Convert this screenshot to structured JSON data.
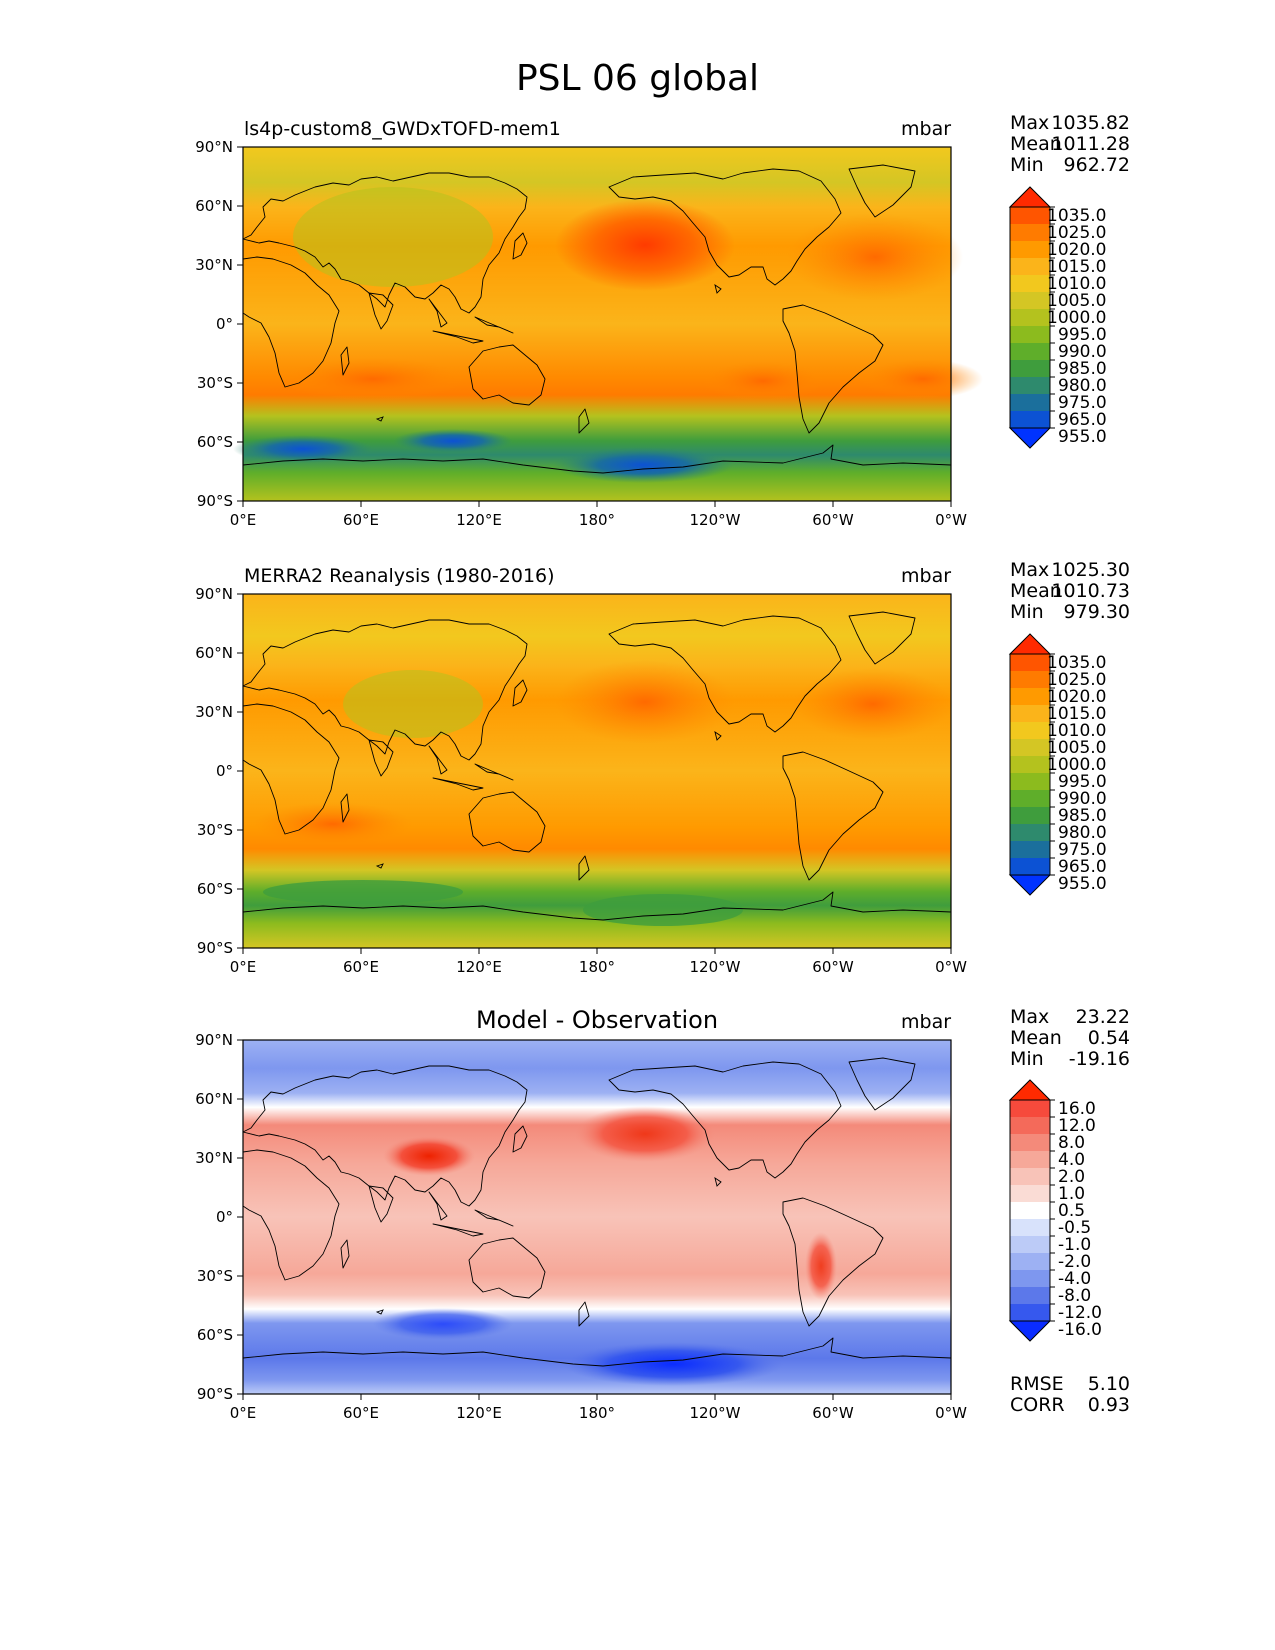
{
  "title": "PSL 06 global",
  "lat_ticks": [
    "90°N",
    "60°N",
    "30°N",
    "0°",
    "30°S",
    "60°S",
    "90°S"
  ],
  "lon_ticks": [
    "0°E",
    "60°E",
    "120°E",
    "180°",
    "120°W",
    "60°W",
    "0°W"
  ],
  "stat_labels": {
    "max": "Max",
    "mean": "Mean",
    "min": "Min",
    "rmse": "RMSE",
    "corr": "CORR"
  },
  "chart_data": [
    {
      "type": "heatmap",
      "title": "ls4p-custom8_GWDxTOFD-mem1",
      "units": "mbar",
      "stats": {
        "max": "1035.82",
        "mean": "1011.28",
        "min": "962.72"
      },
      "levels": [
        "1035.0",
        "1025.0",
        "1020.0",
        "1015.0",
        "1010.0",
        "1005.0",
        "1000.0",
        "995.0",
        "990.0",
        "985.0",
        "980.0",
        "975.0",
        "965.0",
        "955.0"
      ],
      "colors": [
        "#ff2a00",
        "#ff5500",
        "#ff7b00",
        "#ff9a00",
        "#fbb41a",
        "#f2c81e",
        "#d4c624",
        "#b4c21e",
        "#8cbb1e",
        "#5fae2a",
        "#3f9d3d",
        "#2e8a6d",
        "#1b6f9c",
        "#0c52d4",
        "#0033ff"
      ],
      "xlabel": "",
      "ylabel": ""
    },
    {
      "type": "heatmap",
      "title": "MERRA2 Reanalysis (1980-2016)",
      "units": "mbar",
      "stats": {
        "max": "1025.30",
        "mean": "1010.73",
        "min": "979.30"
      },
      "levels": [
        "1035.0",
        "1025.0",
        "1020.0",
        "1015.0",
        "1010.0",
        "1005.0",
        "1000.0",
        "995.0",
        "990.0",
        "985.0",
        "980.0",
        "975.0",
        "965.0",
        "955.0"
      ],
      "colors": [
        "#ff2a00",
        "#ff5500",
        "#ff7b00",
        "#ff9a00",
        "#fbb41a",
        "#f2c81e",
        "#d4c624",
        "#b4c21e",
        "#8cbb1e",
        "#5fae2a",
        "#3f9d3d",
        "#2e8a6d",
        "#1b6f9c",
        "#0c52d4",
        "#0033ff"
      ],
      "xlabel": "",
      "ylabel": ""
    },
    {
      "type": "heatmap",
      "title": "Model - Observation",
      "units": "mbar",
      "stats": {
        "max": "23.22",
        "mean": "0.54",
        "min": "-19.16",
        "rmse": "5.10",
        "corr": "0.93"
      },
      "levels": [
        "16.0",
        "12.0",
        "8.0",
        "4.0",
        "2.0",
        "1.0",
        "0.5",
        "-0.5",
        "-1.0",
        "-2.0",
        "-4.0",
        "-8.0",
        "-12.0",
        "-16.0"
      ],
      "colors": [
        "#ff2a00",
        "#f64a3c",
        "#f46a5a",
        "#f48a7a",
        "#f6a899",
        "#f8c3b8",
        "#fadcd5",
        "#ffffff",
        "#d8e2fb",
        "#bccbf7",
        "#9db1f3",
        "#7e97ef",
        "#5c78ea",
        "#3658ee",
        "#0a2cff"
      ],
      "xlabel": "",
      "ylabel": ""
    }
  ]
}
